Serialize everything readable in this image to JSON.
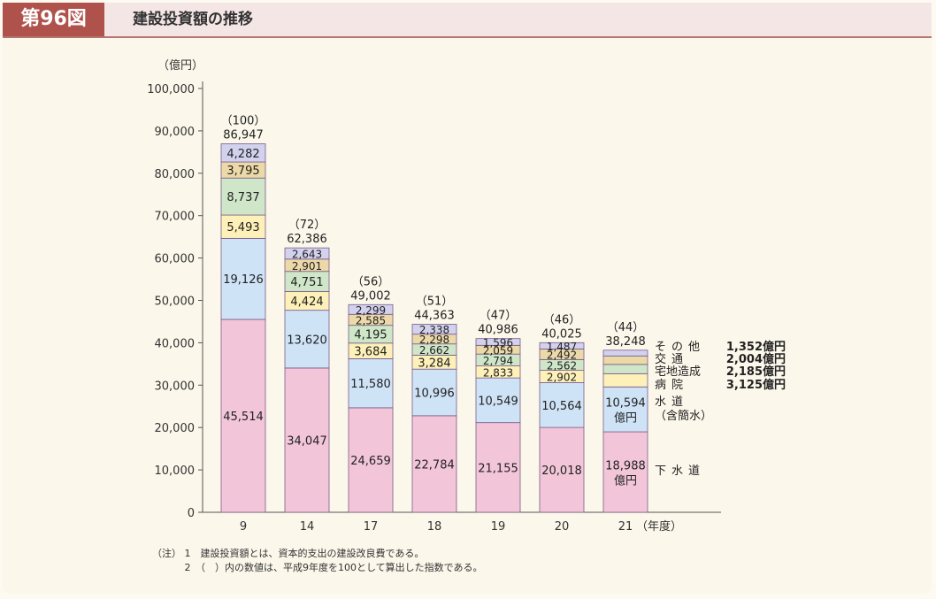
{
  "header": {
    "figure_label": "第96図",
    "title": "建設投資額の推移"
  },
  "chart_data": {
    "type": "bar",
    "stacked": true,
    "title": "建設投資額の推移",
    "ylabel": "（億円）",
    "xlabel_suffix": "（年度）",
    "ylim": [
      0,
      100000
    ],
    "yticks": [
      "0",
      "10,000",
      "20,000",
      "30,000",
      "40,000",
      "50,000",
      "60,000",
      "70,000",
      "80,000",
      "90,000",
      "100,000"
    ],
    "categories": [
      "9",
      "14",
      "17",
      "18",
      "19",
      "20",
      "21"
    ],
    "series": [
      {
        "name": "下水道",
        "color": "#f2c6d8",
        "values": [
          45514,
          34047,
          24659,
          22784,
          21155,
          20018,
          18988
        ],
        "labels": [
          "45,514",
          "34,047",
          "24,659",
          "22,784",
          "21,155",
          "20,018",
          "18,988"
        ]
      },
      {
        "name": "水道（含簡水）",
        "color": "#cfe3f6",
        "values": [
          19126,
          13620,
          11580,
          10996,
          10549,
          10564,
          10594
        ],
        "labels": [
          "19,126",
          "13,620",
          "11,580",
          "10,996",
          "10,549",
          "10,564",
          "10,594"
        ]
      },
      {
        "name": "病院",
        "color": "#fdf0b8",
        "values": [
          5493,
          4424,
          3684,
          3284,
          2833,
          2902,
          3125
        ],
        "labels": [
          "5,493",
          "4,424",
          "3,684",
          "3,284",
          "2,833",
          "2,902",
          ""
        ]
      },
      {
        "name": "宅地造成",
        "color": "#cfe6c8",
        "values": [
          8737,
          4751,
          4195,
          2662,
          2794,
          2562,
          2185
        ],
        "labels": [
          "8,737",
          "4,751",
          "4,195",
          "2,662",
          "2,794",
          "2,562",
          ""
        ]
      },
      {
        "name": "交通",
        "color": "#ecd9a8",
        "values": [
          3795,
          2901,
          2585,
          2298,
          2059,
          2492,
          2004
        ],
        "labels": [
          "3,795",
          "2,901",
          "2,585",
          "2,298",
          "2,059",
          "2,492",
          ""
        ]
      },
      {
        "name": "その他",
        "color": "#d2d2ee",
        "values": [
          4282,
          2643,
          2299,
          2338,
          1596,
          1487,
          1352
        ],
        "labels": [
          "4,282",
          "2,643",
          "2,299",
          "2,338",
          "1,596",
          "1,487",
          ""
        ]
      }
    ],
    "totals": [
      "86,947",
      "62,386",
      "49,002",
      "44,363",
      "40,986",
      "40,025",
      "38,248"
    ],
    "indices": [
      "（100）",
      "（72）",
      "（56）",
      "（51）",
      "（47）",
      "（46）",
      "（44）"
    ],
    "last_bar_unit": "億円",
    "legend": [
      {
        "name": "その他",
        "value": "1,352億円"
      },
      {
        "name": "交通",
        "value": "2,004億円"
      },
      {
        "name": "宅地造成",
        "value": "2,185億円"
      },
      {
        "name": "病院",
        "value": "3,125億円"
      },
      {
        "name": "水道",
        "value": ""
      },
      {
        "name": "（含簡水）",
        "value": ""
      },
      {
        "name": "下水道",
        "value": ""
      }
    ]
  },
  "notes": {
    "line1": "（注） 1　建設投資額とは、資本的支出の建設改良費である。",
    "line2": "　　　 2　（　）内の数値は、平成9年度を100として算出した指数である。"
  }
}
